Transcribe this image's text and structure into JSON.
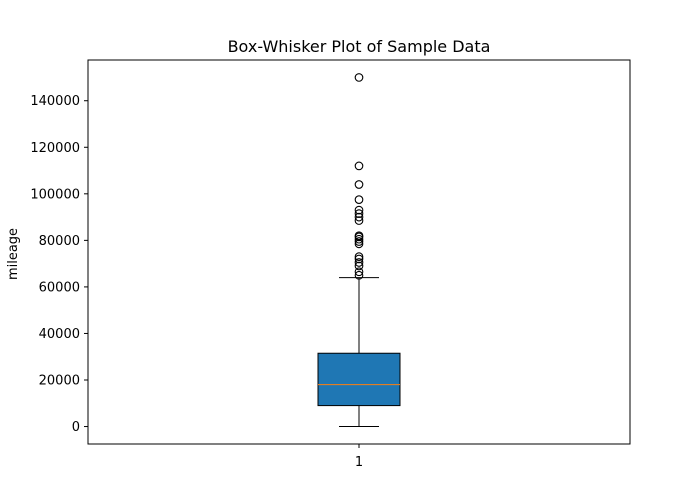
{
  "chart_data": {
    "type": "box",
    "title": "Box-Whisker Plot of Sample Data",
    "xlabel": "",
    "ylabel": "mileage",
    "categories": [
      "1"
    ],
    "ylim": [
      -7500,
      157500
    ],
    "yticks": [
      0,
      20000,
      40000,
      60000,
      80000,
      100000,
      120000,
      140000
    ],
    "ytick_labels": [
      "0",
      "20000",
      "40000",
      "60000",
      "80000",
      "100000",
      "120000",
      "140000"
    ],
    "grid": false,
    "box": {
      "whisker_low": 0,
      "q1": 9000,
      "median": 18000,
      "q3": 31500,
      "whisker_high": 64000,
      "outliers": [
        65000,
        66500,
        69000,
        70500,
        72000,
        73000,
        78500,
        79500,
        80500,
        81500,
        82000,
        88500,
        90000,
        91500,
        93000,
        97500,
        104000,
        112000,
        150000
      ]
    },
    "colors": {
      "box_fill": "#1f77b4",
      "median": "#ff7f0e",
      "lines": "#000000"
    }
  }
}
